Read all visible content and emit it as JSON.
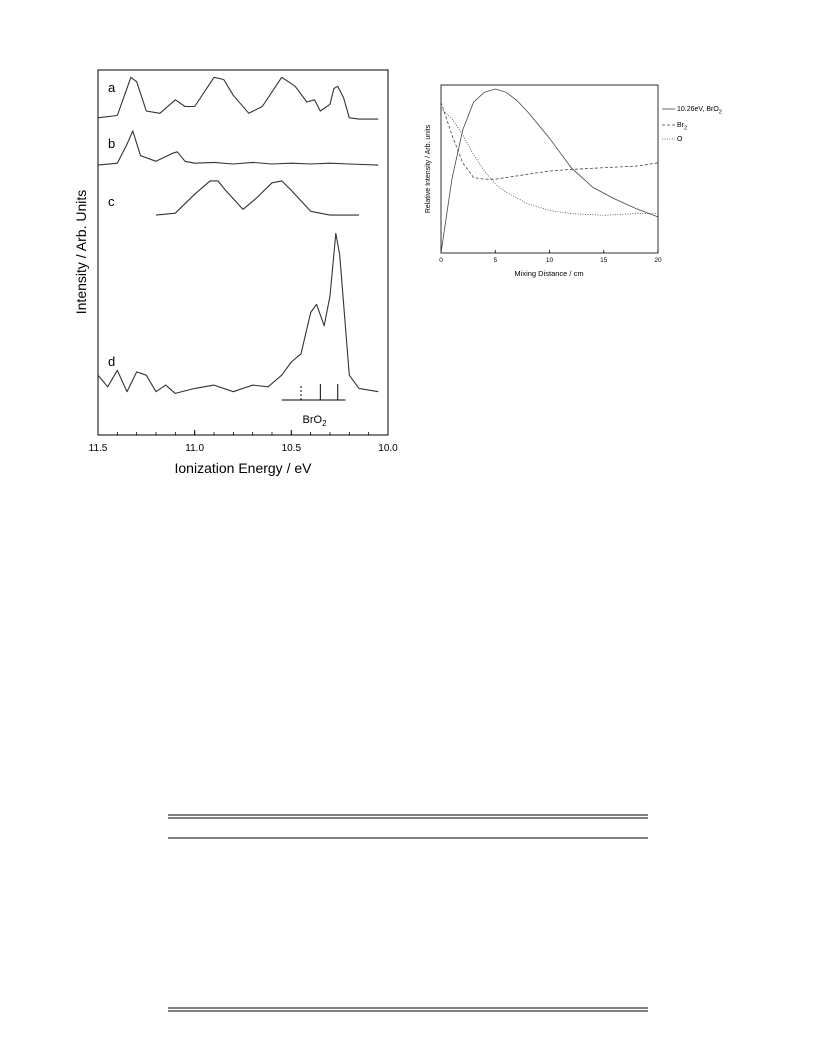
{
  "chart_data": [
    {
      "type": "line",
      "xlabel": "Ionization Energy / eV",
      "ylabel": "Intensity / Arb. Units",
      "xlim": [
        11.5,
        10.0
      ],
      "x_reversed": true,
      "xticks": [
        "11.5",
        "11.0",
        "10.5",
        "10.0"
      ],
      "grid": false,
      "series": [
        {
          "name": "a",
          "x": [
            11.5,
            11.4,
            11.33,
            11.3,
            11.25,
            11.18,
            11.1,
            11.05,
            11.0,
            10.9,
            10.85,
            10.8,
            10.72,
            10.65,
            10.55,
            10.48,
            10.42,
            10.38,
            10.35,
            10.3,
            10.28,
            10.26,
            10.23,
            10.2,
            10.15,
            10.05
          ],
          "y": [
            0.05,
            0.1,
            0.95,
            0.85,
            0.2,
            0.15,
            0.45,
            0.3,
            0.3,
            0.95,
            0.9,
            0.55,
            0.15,
            0.3,
            0.95,
            0.75,
            0.4,
            0.45,
            0.2,
            0.35,
            0.7,
            0.75,
            0.5,
            0.05,
            0.02,
            0.02
          ]
        },
        {
          "name": "b",
          "x": [
            11.5,
            11.4,
            11.35,
            11.32,
            11.28,
            11.2,
            11.12,
            11.09,
            11.05,
            11.0,
            10.9,
            10.8,
            10.7,
            10.6,
            10.5,
            10.4,
            10.3,
            10.2,
            10.05
          ],
          "y": [
            0.05,
            0.1,
            0.6,
            0.95,
            0.3,
            0.15,
            0.35,
            0.4,
            0.15,
            0.1,
            0.12,
            0.08,
            0.12,
            0.08,
            0.1,
            0.08,
            0.1,
            0.08,
            0.05
          ]
        },
        {
          "name": "c",
          "x": [
            11.2,
            11.1,
            11.0,
            10.92,
            10.88,
            10.84,
            10.75,
            10.68,
            10.6,
            10.55,
            10.5,
            10.4,
            10.3,
            10.15
          ],
          "y": [
            0.05,
            0.1,
            0.6,
            0.95,
            0.95,
            0.7,
            0.2,
            0.5,
            0.9,
            0.95,
            0.7,
            0.15,
            0.05,
            0.05
          ]
        },
        {
          "name": "d",
          "x": [
            11.5,
            11.45,
            11.4,
            11.35,
            11.3,
            11.25,
            11.2,
            11.15,
            11.1,
            11.0,
            10.9,
            10.8,
            10.7,
            10.62,
            10.55,
            10.5,
            10.45,
            10.4,
            10.37,
            10.33,
            10.3,
            10.27,
            10.25,
            10.2,
            10.15,
            10.05
          ],
          "y": [
            0.12,
            0.05,
            0.15,
            0.02,
            0.14,
            0.12,
            0.02,
            0.06,
            0.01,
            0.04,
            0.06,
            0.02,
            0.06,
            0.05,
            0.12,
            0.2,
            0.25,
            0.5,
            0.55,
            0.42,
            0.6,
            0.98,
            0.85,
            0.12,
            0.04,
            0.02
          ]
        }
      ],
      "stick_spectrum": {
        "label": "BrO",
        "label_sub": "2",
        "positions": [
          10.45,
          10.35,
          10.26
        ],
        "dashed": [
          true,
          false,
          false
        ]
      }
    },
    {
      "type": "line",
      "xlabel": "Mixing Distance / cm",
      "ylabel": "Relative Intensity / Arb. units",
      "xlim": [
        0,
        20
      ],
      "xticks": [
        "0",
        "5",
        "10",
        "15",
        "20"
      ],
      "legend_placement": "right",
      "grid": false,
      "series": [
        {
          "name": "10.26eV, BrO",
          "name_sub": "2",
          "style": "solid",
          "x": [
            0,
            1,
            2,
            3,
            4,
            5,
            6,
            7,
            8,
            10,
            12,
            14,
            16,
            18,
            20
          ],
          "y": [
            0.0,
            0.45,
            0.75,
            0.92,
            0.98,
            1.0,
            0.98,
            0.93,
            0.86,
            0.7,
            0.52,
            0.4,
            0.33,
            0.27,
            0.22
          ]
        },
        {
          "name": "Br",
          "name_sub": "2",
          "style": "dashed",
          "x": [
            0,
            1,
            2,
            3,
            4,
            5,
            7,
            10,
            12,
            15,
            18,
            20
          ],
          "y": [
            0.92,
            0.72,
            0.55,
            0.46,
            0.45,
            0.45,
            0.47,
            0.5,
            0.51,
            0.52,
            0.53,
            0.55
          ]
        },
        {
          "name": "O",
          "style": "dotted",
          "x": [
            0,
            1,
            2,
            3,
            4,
            5,
            6,
            8,
            10,
            12,
            15,
            18,
            20
          ],
          "y": [
            0.88,
            0.82,
            0.72,
            0.6,
            0.5,
            0.42,
            0.37,
            0.3,
            0.26,
            0.24,
            0.23,
            0.24,
            0.24
          ]
        }
      ]
    }
  ],
  "panel_labels": [
    "a",
    "b",
    "c",
    "d"
  ]
}
